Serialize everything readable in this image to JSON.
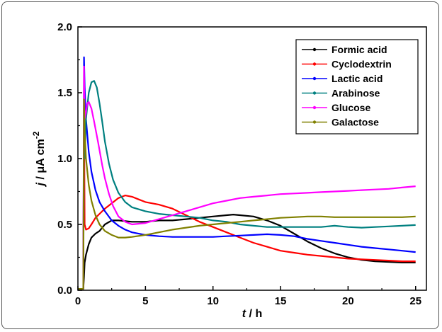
{
  "chart_data": {
    "type": "line",
    "xlabel_var": "t",
    "xlabel_unit": " / h",
    "ylabel_var": "j",
    "ylabel_unit": " / μA cm",
    "ylabel_exp": "-2",
    "xlim": [
      0,
      25.8
    ],
    "ylim": [
      0,
      2.0
    ],
    "xticks": [
      0,
      5,
      10,
      15,
      20,
      25
    ],
    "xtick_labels": [
      "0",
      "5",
      "10",
      "15",
      "20",
      "25"
    ],
    "yticks": [
      0,
      0.5,
      1.0,
      1.5,
      2.0
    ],
    "ytick_labels": [
      "0.0",
      "0.5",
      "1.0",
      "1.5",
      "2.0"
    ],
    "legend_position": "top-right",
    "grid": false,
    "series": [
      {
        "name": "Formic acid",
        "color": "#000000",
        "marker": "square",
        "x": [
          0,
          0.4,
          0.45,
          0.5,
          0.6,
          0.8,
          1.0,
          1.3,
          1.6,
          2.0,
          2.5,
          3.0,
          4.0,
          5.0,
          6.0,
          7.0,
          8.0,
          9.0,
          10.0,
          11.0,
          11.5,
          12.0,
          13.0,
          14.0,
          15.0,
          16.0,
          17.0,
          18.0,
          19.0,
          20.0,
          21.0,
          22.0,
          23.0,
          24.0,
          25.0
        ],
        "y": [
          0.01,
          0.01,
          0.1,
          0.21,
          0.27,
          0.35,
          0.4,
          0.43,
          0.45,
          0.5,
          0.53,
          0.53,
          0.52,
          0.52,
          0.53,
          0.53,
          0.54,
          0.55,
          0.56,
          0.57,
          0.575,
          0.57,
          0.56,
          0.53,
          0.49,
          0.43,
          0.37,
          0.32,
          0.28,
          0.25,
          0.23,
          0.22,
          0.215,
          0.21,
          0.21
        ]
      },
      {
        "name": "Cyclodextrin",
        "color": "#ff0000",
        "marker": "circle",
        "x": [
          0,
          0.4,
          0.45,
          0.5,
          0.6,
          0.8,
          1.0,
          1.3,
          1.6,
          2.0,
          2.5,
          3.0,
          3.5,
          4.0,
          4.5,
          5.0,
          6.0,
          7.0,
          8.0,
          9.0,
          10.0,
          11.0,
          12.0,
          13.0,
          14.0,
          15.0,
          16.0,
          17.0,
          18.0,
          19.0,
          20.0,
          21.0,
          22.0,
          23.0,
          24.0,
          25.0
        ],
        "y": [
          0.01,
          0.01,
          1.5,
          0.5,
          0.46,
          0.47,
          0.5,
          0.55,
          0.58,
          0.62,
          0.66,
          0.7,
          0.72,
          0.71,
          0.69,
          0.67,
          0.65,
          0.62,
          0.57,
          0.52,
          0.48,
          0.44,
          0.4,
          0.36,
          0.33,
          0.3,
          0.285,
          0.27,
          0.26,
          0.25,
          0.24,
          0.235,
          0.23,
          0.225,
          0.22,
          0.22
        ]
      },
      {
        "name": "Lactic acid",
        "color": "#0000ff",
        "marker": "triangle",
        "x": [
          0,
          0.4,
          0.45,
          0.5,
          0.6,
          0.8,
          1.0,
          1.3,
          1.6,
          2.0,
          2.5,
          3.0,
          3.5,
          4.0,
          5.0,
          6.0,
          7.0,
          8.0,
          9.0,
          10.0,
          11.0,
          12.0,
          13.0,
          14.0,
          15.0,
          16.0,
          17.0,
          18.0,
          19.0,
          20.0,
          21.0,
          22.0,
          23.0,
          24.0,
          25.0
        ],
        "y": [
          0.01,
          0.01,
          1.77,
          1.55,
          1.3,
          1.05,
          0.9,
          0.76,
          0.67,
          0.6,
          0.53,
          0.49,
          0.46,
          0.44,
          0.42,
          0.41,
          0.405,
          0.405,
          0.405,
          0.405,
          0.41,
          0.415,
          0.42,
          0.425,
          0.42,
          0.41,
          0.39,
          0.375,
          0.36,
          0.345,
          0.33,
          0.32,
          0.31,
          0.3,
          0.29
        ]
      },
      {
        "name": "Arabinose",
        "color": "#008080",
        "marker": "diamond",
        "x": [
          0,
          0.4,
          0.45,
          0.5,
          0.6,
          0.8,
          1.0,
          1.2,
          1.4,
          1.6,
          1.8,
          2.0,
          2.3,
          2.6,
          3.0,
          3.5,
          4.0,
          5.0,
          6.0,
          7.0,
          8.0,
          9.0,
          10.0,
          11.0,
          12.0,
          13.0,
          14.0,
          15.0,
          16.0,
          17.0,
          18.0,
          19.0,
          20.0,
          21.0,
          22.0,
          23.0,
          24.0,
          25.0
        ],
        "y": [
          0.01,
          0.01,
          1.25,
          1.0,
          1.3,
          1.5,
          1.58,
          1.59,
          1.54,
          1.42,
          1.28,
          1.13,
          0.96,
          0.84,
          0.74,
          0.67,
          0.63,
          0.6,
          0.58,
          0.57,
          0.56,
          0.55,
          0.53,
          0.52,
          0.5,
          0.49,
          0.48,
          0.48,
          0.48,
          0.48,
          0.48,
          0.49,
          0.48,
          0.475,
          0.48,
          0.485,
          0.49,
          0.495
        ]
      },
      {
        "name": "Glucose",
        "color": "#ff00ff",
        "marker": "triangle-down",
        "x": [
          0,
          0.4,
          0.45,
          0.5,
          0.6,
          0.7,
          0.8,
          1.0,
          1.2,
          1.5,
          1.8,
          2.0,
          2.3,
          2.6,
          3.0,
          3.5,
          4.0,
          5.0,
          6.0,
          7.0,
          8.0,
          9.0,
          10.0,
          11.0,
          12.0,
          13.0,
          14.0,
          15.0,
          16.0,
          17.0,
          18.0,
          19.0,
          20.0,
          21.0,
          22.0,
          23.0,
          24.0,
          25.0
        ],
        "y": [
          0.01,
          0.01,
          1.7,
          1.3,
          1.35,
          1.42,
          1.43,
          1.38,
          1.28,
          1.12,
          0.95,
          0.85,
          0.73,
          0.64,
          0.56,
          0.52,
          0.5,
          0.51,
          0.54,
          0.57,
          0.6,
          0.63,
          0.66,
          0.68,
          0.7,
          0.71,
          0.72,
          0.73,
          0.735,
          0.74,
          0.745,
          0.75,
          0.755,
          0.76,
          0.765,
          0.77,
          0.78,
          0.79
        ]
      },
      {
        "name": "Galactose",
        "color": "#808000",
        "marker": "star",
        "x": [
          0,
          0.4,
          0.45,
          0.5,
          0.55,
          0.6,
          0.8,
          1.0,
          1.3,
          1.6,
          2.0,
          2.5,
          3.0,
          3.5,
          4.0,
          5.0,
          6.0,
          7.0,
          8.0,
          9.0,
          10.0,
          11.0,
          12.0,
          13.0,
          14.0,
          15.0,
          16.0,
          17.0,
          18.0,
          19.0,
          20.0,
          21.0,
          22.0,
          23.0,
          24.0,
          25.0
        ],
        "y": [
          0.01,
          0.01,
          1.45,
          1.2,
          1.1,
          1.0,
          0.8,
          0.68,
          0.57,
          0.5,
          0.45,
          0.42,
          0.4,
          0.4,
          0.405,
          0.42,
          0.44,
          0.46,
          0.475,
          0.49,
          0.5,
          0.51,
          0.52,
          0.53,
          0.54,
          0.55,
          0.555,
          0.56,
          0.56,
          0.555,
          0.555,
          0.555,
          0.555,
          0.555,
          0.555,
          0.56
        ]
      }
    ]
  }
}
